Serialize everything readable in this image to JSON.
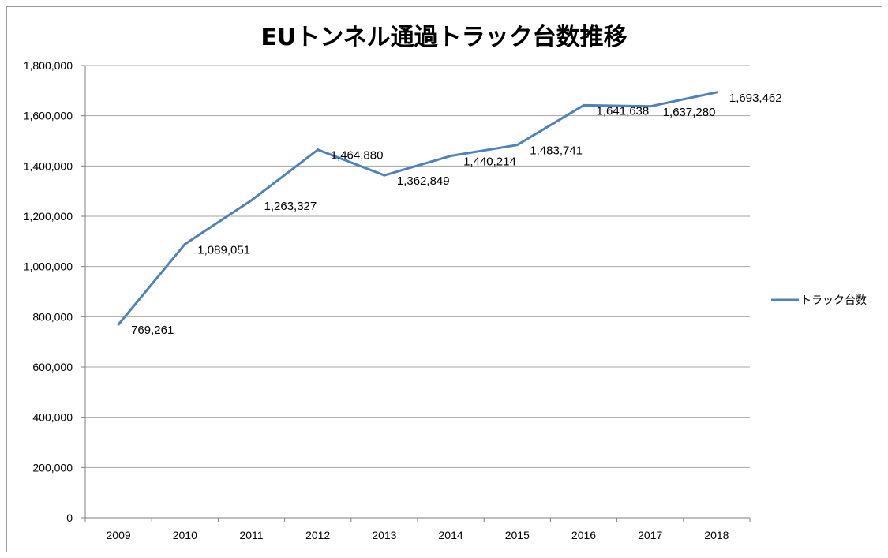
{
  "chart_data": {
    "type": "line",
    "title": "EUトンネル通過トラック台数推移",
    "xlabel": "",
    "ylabel": "",
    "categories": [
      "2009",
      "2010",
      "2011",
      "2012",
      "2013",
      "2014",
      "2015",
      "2016",
      "2017",
      "2018"
    ],
    "series": [
      {
        "name": "トラック台数",
        "values": [
          769261,
          1089051,
          1263327,
          1464880,
          1362849,
          1440214,
          1483741,
          1641638,
          1637280,
          1693462
        ],
        "labels": [
          "769,261",
          "1,089,051",
          "1,263,327",
          "1,464,880",
          "1,362,849",
          "1,440,214",
          "1,483,741",
          "1,641,638",
          "1,637,280",
          "1,693,462"
        ],
        "color": "#4f81bd"
      }
    ],
    "ylim": [
      0,
      1800000
    ],
    "yticks": [
      {
        "value": 0,
        "label": "0"
      },
      {
        "value": 200000,
        "label": "200,000"
      },
      {
        "value": 400000,
        "label": "400,000"
      },
      {
        "value": 600000,
        "label": "600,000"
      },
      {
        "value": 800000,
        "label": "800,000"
      },
      {
        "value": 1000000,
        "label": "1,000,000"
      },
      {
        "value": 1200000,
        "label": "1,200,000"
      },
      {
        "value": 1400000,
        "label": "1,400,000"
      },
      {
        "value": 1600000,
        "label": "1,600,000"
      },
      {
        "value": 1800000,
        "label": "1,800,000"
      }
    ],
    "grid": true,
    "legend": "right",
    "gridColor": "#a6a6a6",
    "axisColor": "#7f7f7f"
  }
}
